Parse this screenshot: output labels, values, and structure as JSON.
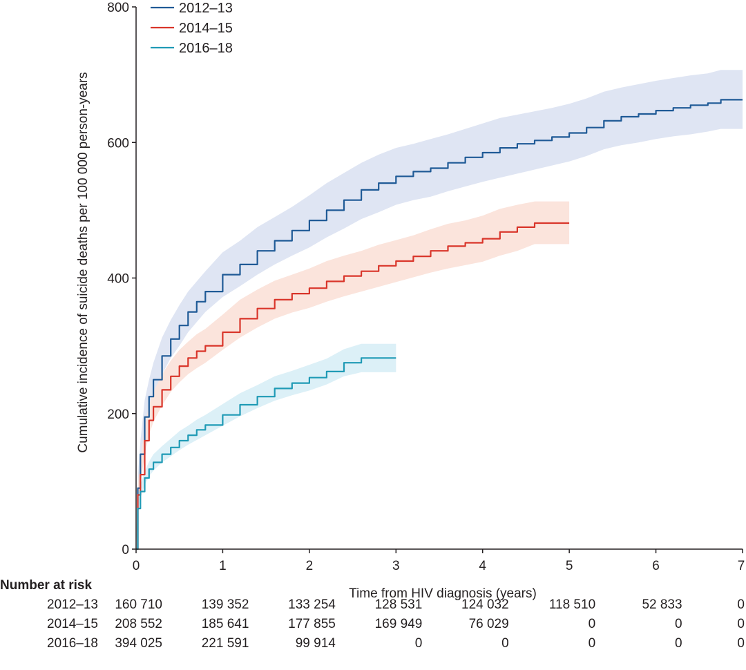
{
  "chart_data": {
    "type": "line",
    "title": "",
    "xlabel": "Time from HIV diagnosis (years)",
    "ylabel": "Cumulative incidence of suicide deaths per 100 000 person-years",
    "xlim": [
      0,
      7
    ],
    "ylim": [
      0,
      800
    ],
    "xticks": [
      0,
      1,
      2,
      3,
      4,
      5,
      6,
      7
    ],
    "yticks": [
      0,
      200,
      400,
      600,
      800
    ],
    "legend_position": "top-left",
    "series": [
      {
        "name": "2012–13",
        "color": "#1f5a96",
        "band_color": "#dfe5f3",
        "x": [
          0,
          0.02,
          0.05,
          0.1,
          0.15,
          0.2,
          0.3,
          0.4,
          0.5,
          0.6,
          0.7,
          0.8,
          1.0,
          1.2,
          1.4,
          1.6,
          1.8,
          2.0,
          2.2,
          2.4,
          2.6,
          2.8,
          3.0,
          3.2,
          3.4,
          3.6,
          3.8,
          4.0,
          4.2,
          4.4,
          4.6,
          4.8,
          5.0,
          5.2,
          5.4,
          5.6,
          5.8,
          6.0,
          6.2,
          6.4,
          6.6,
          6.75,
          7.0
        ],
        "y": [
          0,
          90,
          140,
          195,
          225,
          250,
          285,
          310,
          330,
          350,
          365,
          380,
          405,
          420,
          440,
          455,
          470,
          485,
          500,
          515,
          530,
          540,
          550,
          557,
          562,
          570,
          578,
          585,
          592,
          598,
          603,
          608,
          614,
          622,
          632,
          638,
          642,
          647,
          651,
          655,
          658,
          663,
          663
        ],
        "lower": [
          0,
          75,
          120,
          170,
          200,
          225,
          258,
          282,
          300,
          320,
          335,
          350,
          372,
          388,
          405,
          420,
          433,
          445,
          460,
          473,
          487,
          497,
          508,
          515,
          520,
          528,
          535,
          542,
          548,
          554,
          560,
          566,
          572,
          580,
          590,
          596,
          600,
          605,
          609,
          612,
          616,
          620,
          620
        ],
        "upper": [
          0,
          105,
          160,
          220,
          250,
          275,
          312,
          338,
          360,
          380,
          395,
          410,
          438,
          455,
          475,
          490,
          505,
          522,
          540,
          555,
          570,
          582,
          592,
          598,
          605,
          612,
          620,
          628,
          636,
          641,
          646,
          651,
          657,
          665,
          675,
          681,
          686,
          691,
          695,
          699,
          702,
          707,
          707
        ]
      },
      {
        "name": "2014–15",
        "color": "#d9352a",
        "band_color": "#fbe4dc",
        "x": [
          0,
          0.02,
          0.05,
          0.1,
          0.15,
          0.2,
          0.3,
          0.4,
          0.5,
          0.6,
          0.7,
          0.8,
          1.0,
          1.2,
          1.4,
          1.6,
          1.8,
          2.0,
          2.2,
          2.4,
          2.6,
          2.8,
          3.0,
          3.2,
          3.4,
          3.6,
          3.8,
          4.0,
          4.2,
          4.4,
          4.6,
          5.0
        ],
        "y": [
          0,
          80,
          110,
          160,
          190,
          210,
          235,
          255,
          270,
          282,
          292,
          300,
          320,
          340,
          355,
          368,
          377,
          385,
          395,
          403,
          410,
          418,
          425,
          432,
          440,
          447,
          452,
          458,
          468,
          475,
          481,
          481
        ],
        "lower": [
          0,
          65,
          95,
          140,
          168,
          188,
          212,
          232,
          246,
          258,
          267,
          275,
          294,
          312,
          327,
          340,
          349,
          356,
          365,
          373,
          380,
          387,
          394,
          401,
          408,
          414,
          419,
          424,
          433,
          440,
          450,
          450
        ],
        "upper": [
          0,
          95,
          128,
          182,
          212,
          232,
          258,
          278,
          294,
          306,
          317,
          325,
          346,
          368,
          383,
          396,
          405,
          414,
          425,
          433,
          440,
          449,
          456,
          463,
          472,
          480,
          485,
          492,
          502,
          508,
          513,
          513
        ]
      },
      {
        "name": "2016–18",
        "color": "#1f9ab5",
        "band_color": "#dcf0f7",
        "x": [
          0,
          0.02,
          0.05,
          0.1,
          0.15,
          0.2,
          0.3,
          0.4,
          0.5,
          0.6,
          0.7,
          0.8,
          1.0,
          1.2,
          1.4,
          1.6,
          1.8,
          2.0,
          2.2,
          2.4,
          2.6,
          3.0
        ],
        "y": [
          0,
          60,
          85,
          105,
          118,
          128,
          140,
          150,
          160,
          168,
          176,
          183,
          198,
          213,
          225,
          237,
          245,
          253,
          262,
          275,
          282,
          282
        ],
        "lower": [
          0,
          50,
          75,
          95,
          107,
          116,
          128,
          137,
          146,
          154,
          161,
          168,
          182,
          196,
          208,
          219,
          227,
          234,
          243,
          255,
          261,
          261
        ],
        "upper": [
          0,
          70,
          95,
          115,
          129,
          140,
          152,
          163,
          174,
          182,
          191,
          198,
          214,
          230,
          242,
          255,
          263,
          272,
          281,
          295,
          303,
          303
        ]
      }
    ],
    "risk_table": {
      "title": "Number at risk",
      "rows": [
        {
          "label": "2012–13",
          "values": [
            "160 710",
            "139 352",
            "133 254",
            "128 531",
            "124 032",
            "118 510",
            "52 833",
            "0"
          ]
        },
        {
          "label": "2014–15",
          "values": [
            "208 552",
            "185 641",
            "177 855",
            "169 949",
            "76 029",
            "0",
            "0",
            "0"
          ]
        },
        {
          "label": "2016–18",
          "values": [
            "394 025",
            "221 591",
            "99 914",
            "0",
            "0",
            "0",
            "0",
            "0"
          ]
        }
      ]
    }
  }
}
